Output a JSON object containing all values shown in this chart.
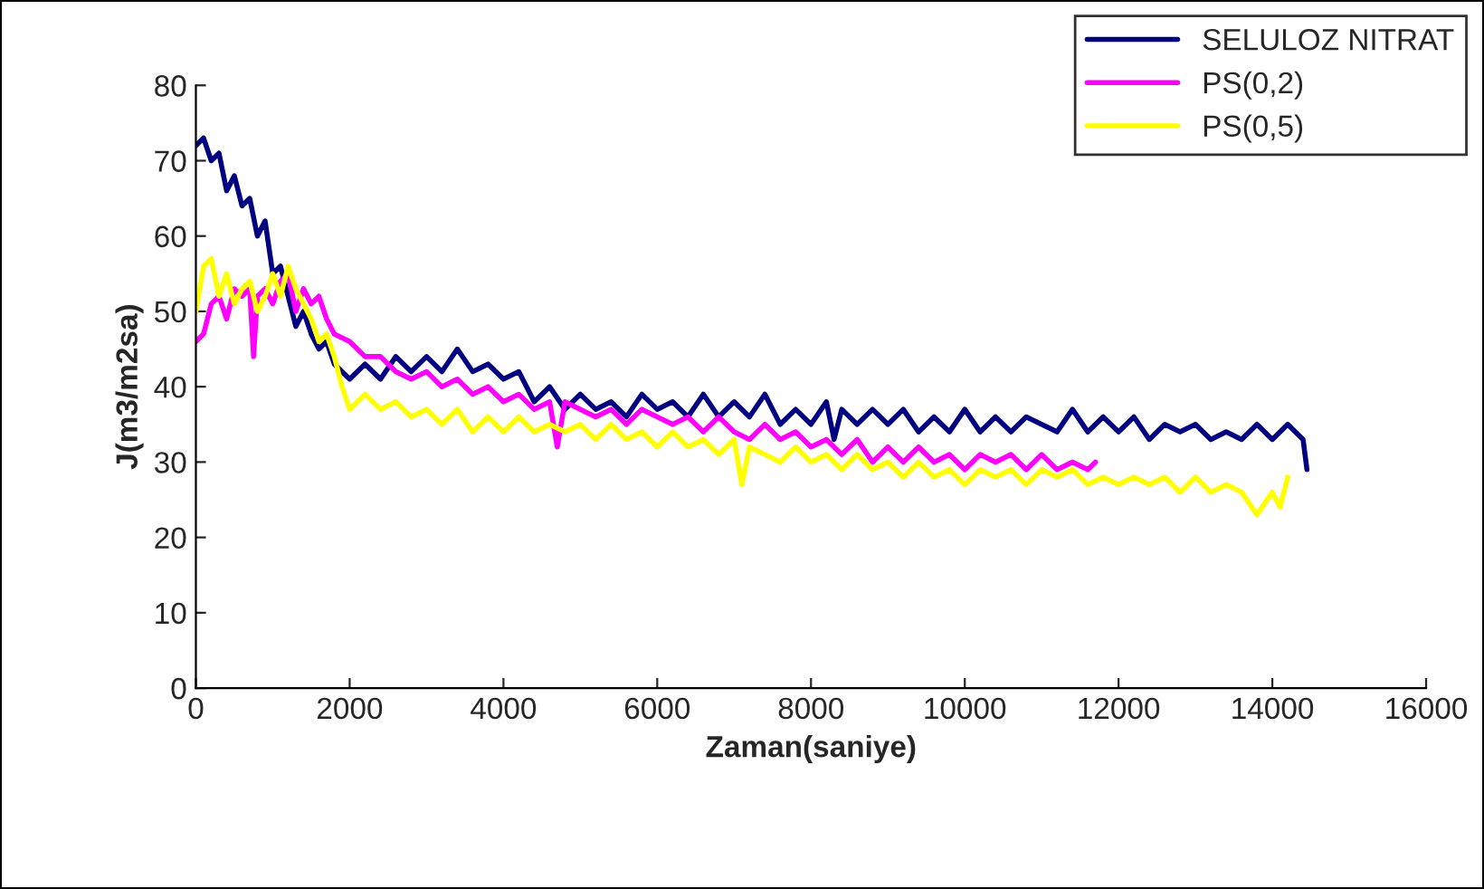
{
  "chart_data": {
    "type": "line",
    "xlabel": "Zaman(saniye)",
    "ylabel": "J(m3/m2sa)",
    "xlim": [
      0,
      16000
    ],
    "xticks": [
      0,
      2000,
      4000,
      6000,
      8000,
      10000,
      12000,
      14000,
      16000
    ],
    "ylim": [
      0,
      80
    ],
    "yticks": [
      0,
      10,
      20,
      30,
      40,
      50,
      60,
      70,
      80
    ],
    "grid": false,
    "legend": "top right",
    "marker": "none",
    "line_style": "solid",
    "series": [
      {
        "name": "SELULOZ NITRAT",
        "color": "#000080",
        "x": [
          0,
          100,
          200,
          300,
          400,
          500,
          600,
          700,
          800,
          900,
          1000,
          1100,
          1200,
          1300,
          1400,
          1500,
          1600,
          1700,
          1800,
          1900,
          2000,
          2200,
          2400,
          2600,
          2800,
          3000,
          3200,
          3400,
          3600,
          3800,
          4000,
          4200,
          4400,
          4600,
          4800,
          5000,
          5200,
          5400,
          5600,
          5800,
          6000,
          6200,
          6400,
          6600,
          6800,
          7000,
          7200,
          7400,
          7600,
          7800,
          8000,
          8200,
          8300,
          8400,
          8600,
          8800,
          9000,
          9200,
          9400,
          9600,
          9800,
          10000,
          10200,
          10400,
          10600,
          10800,
          11000,
          11200,
          11400,
          11600,
          11800,
          12000,
          12200,
          12400,
          12600,
          12800,
          13000,
          13200,
          13400,
          13600,
          13800,
          14000,
          14200,
          14400,
          14450
        ],
        "values": [
          72,
          73,
          70,
          71,
          66,
          68,
          64,
          65,
          60,
          62,
          55,
          56,
          52,
          48,
          50,
          47,
          45,
          46,
          43,
          42,
          41,
          43,
          41,
          44,
          42,
          44,
          42,
          45,
          42,
          43,
          41,
          42,
          38,
          40,
          37,
          39,
          37,
          38,
          36,
          39,
          37,
          38,
          36,
          39,
          36,
          38,
          36,
          39,
          35,
          37,
          35,
          38,
          33,
          37,
          35,
          37,
          35,
          37,
          34,
          36,
          34,
          37,
          34,
          36,
          34,
          36,
          35,
          34,
          37,
          34,
          36,
          34,
          36,
          33,
          35,
          34,
          35,
          33,
          34,
          33,
          35,
          33,
          35,
          33,
          29
        ]
      },
      {
        "name": "PS(0,2)",
        "color": "#ff00ff",
        "x": [
          0,
          100,
          200,
          300,
          400,
          500,
          600,
          700,
          750,
          800,
          900,
          1000,
          1100,
          1200,
          1300,
          1400,
          1500,
          1600,
          1700,
          1800,
          2000,
          2200,
          2400,
          2600,
          2800,
          3000,
          3200,
          3400,
          3600,
          3800,
          4000,
          4200,
          4400,
          4600,
          4700,
          4800,
          5000,
          5200,
          5400,
          5600,
          5800,
          6000,
          6200,
          6400,
          6600,
          6800,
          7000,
          7200,
          7400,
          7600,
          7800,
          8000,
          8200,
          8400,
          8600,
          8800,
          9000,
          9200,
          9400,
          9600,
          9800,
          10000,
          10200,
          10400,
          10600,
          10800,
          11000,
          11200,
          11400,
          11600,
          11700
        ],
        "values": [
          46,
          47,
          51,
          52,
          49,
          53,
          52,
          53,
          44,
          52,
          53,
          51,
          54,
          55,
          50,
          53,
          51,
          52,
          49,
          47,
          46,
          44,
          44,
          42,
          41,
          42,
          40,
          41,
          39,
          40,
          38,
          39,
          37,
          38,
          32,
          38,
          37,
          36,
          37,
          35,
          37,
          36,
          35,
          36,
          34,
          36,
          34,
          33,
          35,
          33,
          34,
          32,
          33,
          31,
          33,
          30,
          32,
          30,
          32,
          30,
          31,
          29,
          31,
          30,
          31,
          29,
          31,
          29,
          30,
          29,
          30
        ]
      },
      {
        "name": "PS(0,5)",
        "color": "#ffff00",
        "x": [
          0,
          100,
          200,
          300,
          400,
          500,
          600,
          700,
          800,
          900,
          1000,
          1100,
          1200,
          1300,
          1400,
          1500,
          1600,
          1700,
          1800,
          1900,
          2000,
          2200,
          2400,
          2600,
          2800,
          3000,
          3200,
          3400,
          3600,
          3800,
          4000,
          4200,
          4400,
          4600,
          4800,
          5000,
          5200,
          5400,
          5600,
          5800,
          6000,
          6200,
          6400,
          6600,
          6800,
          7000,
          7100,
          7200,
          7400,
          7600,
          7800,
          8000,
          8200,
          8400,
          8600,
          8800,
          9000,
          9200,
          9400,
          9600,
          9800,
          10000,
          10200,
          10400,
          10600,
          10800,
          11000,
          11200,
          11400,
          11600,
          11800,
          12000,
          12200,
          12400,
          12600,
          12800,
          13000,
          13200,
          13400,
          13600,
          13800,
          14000,
          14100,
          14200
        ],
        "values": [
          50,
          56,
          57,
          52,
          55,
          51,
          53,
          54,
          50,
          52,
          55,
          52,
          56,
          53,
          51,
          49,
          46,
          47,
          44,
          40,
          37,
          39,
          37,
          38,
          36,
          37,
          35,
          37,
          34,
          36,
          34,
          36,
          34,
          35,
          34,
          35,
          33,
          35,
          33,
          34,
          32,
          34,
          32,
          33,
          31,
          33,
          27,
          32,
          31,
          30,
          32,
          30,
          31,
          29,
          31,
          29,
          30,
          28,
          30,
          28,
          29,
          27,
          29,
          28,
          29,
          27,
          29,
          28,
          29,
          27,
          28,
          27,
          28,
          27,
          28,
          26,
          28,
          26,
          27,
          26,
          23,
          26,
          24,
          28
        ]
      }
    ]
  }
}
